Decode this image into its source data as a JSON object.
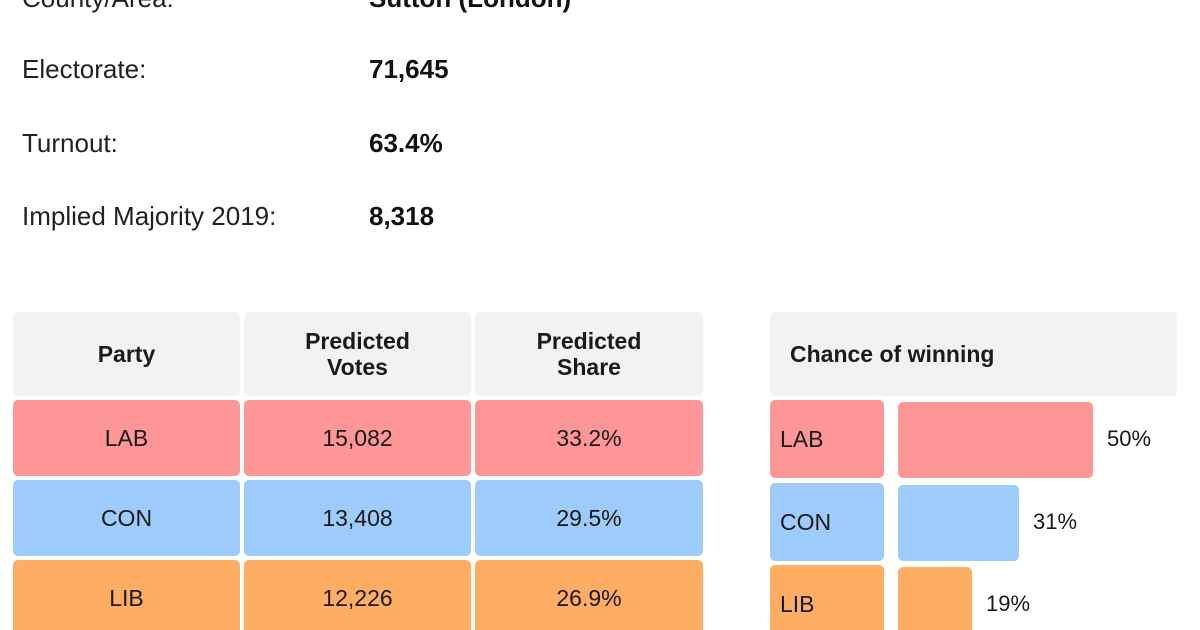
{
  "info": {
    "county_label": "County/Area:",
    "county_value": "Sutton (London)",
    "electorate_label": "Electorate:",
    "electorate_value": "71,645",
    "turnout_label": "Turnout:",
    "turnout_value": "63.4%",
    "majority_label": "Implied Majority 2019:",
    "majority_value": "8,318"
  },
  "table": {
    "headers": {
      "party": "Party",
      "votes_line1": "Predicted",
      "votes_line2": "Votes",
      "share_line1": "Predicted",
      "share_line2": "Share"
    },
    "rows": [
      {
        "party": "LAB",
        "votes": "15,082",
        "share": "33.2%",
        "color": "#fe9697"
      },
      {
        "party": "CON",
        "votes": "13,408",
        "share": "29.5%",
        "color": "#9dcbfc"
      },
      {
        "party": "LIB",
        "votes": "12,226",
        "share": "26.9%",
        "color": "#ffad63"
      }
    ]
  },
  "chance": {
    "header": "Chance of winning",
    "rows": [
      {
        "party": "LAB",
        "percent": 50,
        "label": "50%",
        "color": "#fe9697"
      },
      {
        "party": "CON",
        "percent": 31,
        "label": "31%",
        "color": "#9dcbfc"
      },
      {
        "party": "LIB",
        "percent": 19,
        "label": "19%",
        "color": "#ffad63"
      }
    ]
  }
}
